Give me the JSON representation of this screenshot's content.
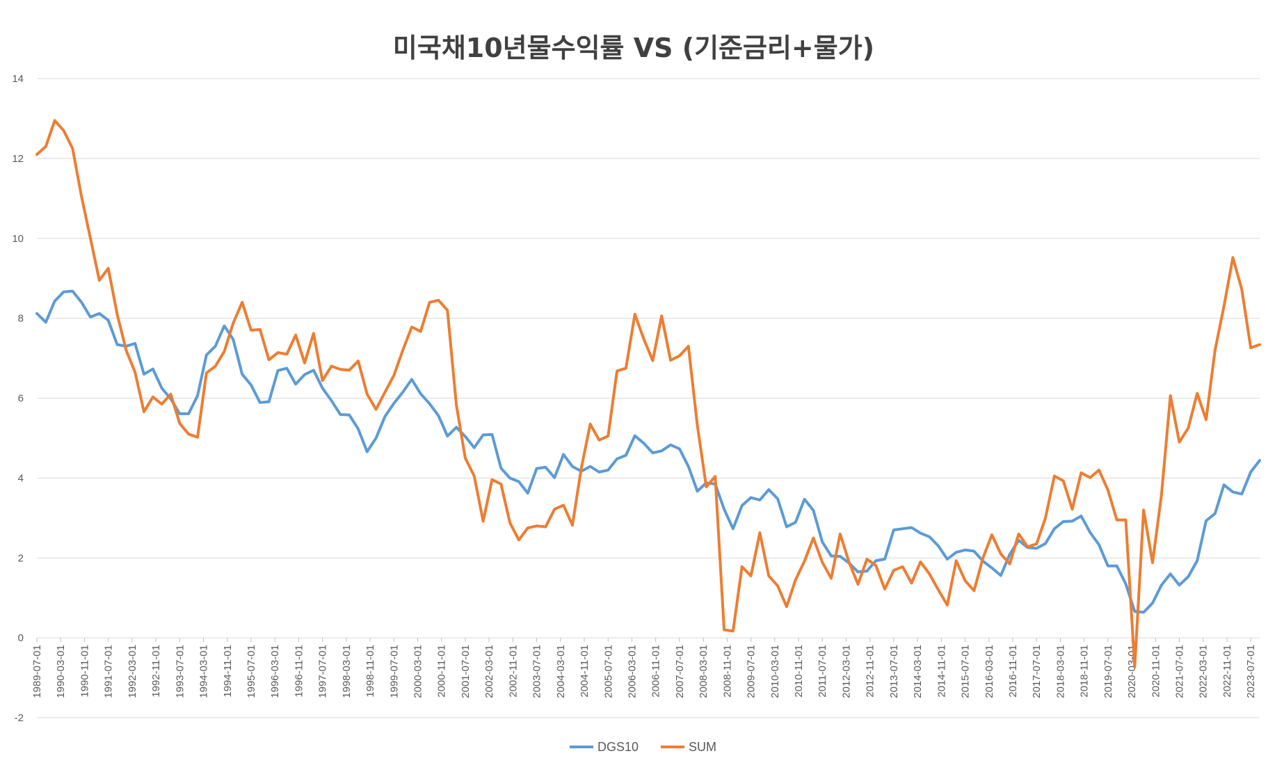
{
  "chart_data": {
    "type": "line",
    "title": "미국채10년물수익률 VS (기준금리+물가)",
    "xlabel": "",
    "ylabel": "",
    "ylim": [
      -2,
      14
    ],
    "yticks": [
      -2,
      0,
      2,
      4,
      6,
      8,
      10,
      12,
      14
    ],
    "ytick_labels": [
      "-2",
      "0",
      "2",
      "4",
      "6",
      "8",
      "10",
      "12",
      "14"
    ],
    "grid": true,
    "legend_position": "bottom-center",
    "x_tick_labels": [
      "1989-07-01",
      "1990-03-01",
      "1990-11-01",
      "1991-07-01",
      "1992-03-01",
      "1992-11-01",
      "1993-07-01",
      "1994-03-01",
      "1994-11-01",
      "1995-07-01",
      "1996-03-01",
      "1996-11-01",
      "1997-07-01",
      "1998-03-01",
      "1998-11-01",
      "1999-07-01",
      "2000-03-01",
      "2000-11-01",
      "2001-07-01",
      "2002-03-01",
      "2002-11-01",
      "2003-07-01",
      "2004-03-01",
      "2004-11-01",
      "2005-07-01",
      "2006-03-01",
      "2006-11-01",
      "2007-07-01",
      "2008-03-01",
      "2008-11-01",
      "2009-07-01",
      "2010-03-01",
      "2010-11-01",
      "2011-07-01",
      "2012-03-01",
      "2012-11-01",
      "2013-07-01",
      "2014-03-01",
      "2014-11-01",
      "2015-07-01",
      "2016-03-01",
      "2016-11-01",
      "2017-07-01",
      "2018-03-01",
      "2018-11-01",
      "2019-07-01",
      "2020-03-01",
      "2020-11-01",
      "2021-07-01",
      "2022-03-01",
      "2022-11-01",
      "2023-07-01"
    ],
    "series": [
      {
        "name": "DGS10",
        "color": "#5b9bd5",
        "values": [
          8.12,
          7.9,
          8.43,
          8.66,
          8.68,
          8.4,
          8.03,
          8.12,
          7.95,
          7.34,
          7.3,
          7.37,
          6.6,
          6.73,
          6.25,
          5.98,
          5.61,
          5.61,
          6.06,
          7.08,
          7.3,
          7.81,
          7.47,
          6.6,
          6.33,
          5.89,
          5.91,
          6.69,
          6.75,
          6.35,
          6.59,
          6.7,
          6.25,
          5.94,
          5.59,
          5.58,
          5.23,
          4.66,
          5.0,
          5.54,
          5.87,
          6.15,
          6.47,
          6.11,
          5.86,
          5.56,
          5.05,
          5.27,
          5.04,
          4.76,
          5.08,
          5.09,
          4.25,
          4.0,
          3.91,
          3.62,
          4.24,
          4.27,
          4.01,
          4.59,
          4.29,
          4.17,
          4.29,
          4.15,
          4.2,
          4.48,
          4.57,
          5.06,
          4.87,
          4.63,
          4.68,
          4.83,
          4.73,
          4.29,
          3.67,
          3.88,
          3.85,
          3.22,
          2.73,
          3.31,
          3.51,
          3.45,
          3.71,
          3.48,
          2.78,
          2.89,
          3.47,
          3.19,
          2.4,
          2.05,
          2.04,
          1.87,
          1.65,
          1.67,
          1.93,
          1.97,
          2.7,
          2.73,
          2.76,
          2.62,
          2.53,
          2.3,
          1.97,
          2.14,
          2.2,
          2.17,
          1.92,
          1.75,
          1.56,
          2.09,
          2.44,
          2.26,
          2.24,
          2.36,
          2.73,
          2.91,
          2.92,
          3.05,
          2.64,
          2.33,
          1.8,
          1.8,
          1.35,
          0.66,
          0.64,
          0.87,
          1.32,
          1.6,
          1.32,
          1.53,
          1.93,
          2.93,
          3.11,
          3.83,
          3.65,
          3.6,
          4.15,
          4.44
        ]
      },
      {
        "name": "SUM",
        "color": "#ed7d31",
        "values": [
          12.1,
          12.3,
          12.95,
          12.7,
          12.25,
          11.05,
          10.0,
          8.95,
          9.25,
          8.1,
          7.2,
          6.65,
          5.66,
          6.03,
          5.85,
          6.1,
          5.37,
          5.1,
          5.02,
          6.63,
          6.8,
          7.17,
          7.88,
          8.4,
          7.7,
          7.72,
          6.96,
          7.14,
          7.1,
          7.58,
          6.88,
          7.62,
          6.44,
          6.8,
          6.72,
          6.7,
          6.93,
          6.1,
          5.72,
          6.15,
          6.57,
          7.2,
          7.78,
          7.67,
          8.4,
          8.45,
          8.2,
          5.83,
          4.5,
          4.05,
          2.92,
          3.96,
          3.85,
          2.88,
          2.45,
          2.75,
          2.8,
          2.78,
          3.22,
          3.32,
          2.82,
          4.25,
          5.35,
          4.95,
          5.05,
          6.68,
          6.75,
          8.1,
          7.48,
          6.94,
          8.06,
          6.95,
          7.06,
          7.3,
          5.32,
          3.78,
          4.04,
          0.2,
          0.17,
          1.78,
          1.55,
          2.63,
          1.55,
          1.3,
          0.78,
          1.45,
          1.92,
          2.5,
          1.89,
          1.49,
          2.6,
          1.89,
          1.34,
          1.97,
          1.81,
          1.22,
          1.69,
          1.78,
          1.37,
          1.9,
          1.6,
          1.2,
          0.82,
          1.93,
          1.43,
          1.18,
          2.0,
          2.58,
          2.1,
          1.85,
          2.6,
          2.28,
          2.35,
          3.0,
          4.05,
          3.93,
          3.22,
          4.13,
          4.01,
          4.2,
          3.7,
          2.95,
          2.95,
          -0.73,
          3.2,
          1.88,
          3.58,
          6.06,
          4.9,
          5.25,
          6.12,
          5.46,
          7.2,
          8.3,
          9.52,
          8.72,
          7.26,
          7.34
        ]
      }
    ]
  }
}
